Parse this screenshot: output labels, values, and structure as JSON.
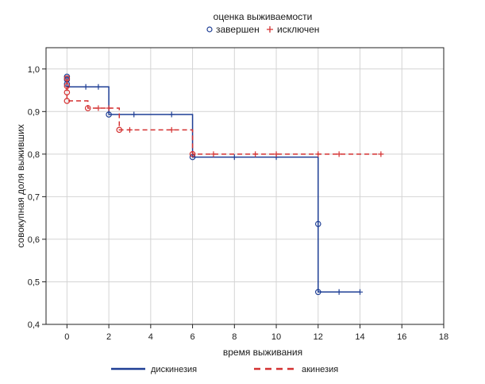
{
  "chart_data": {
    "type": "line",
    "title": "оценка выживаемости",
    "xlabel": "время выживания",
    "ylabel": "совокупная доля выживших",
    "xlim": [
      -1,
      18
    ],
    "ylim": [
      0.4,
      1.05
    ],
    "xticks": [
      "0",
      "2",
      "4",
      "6",
      "8",
      "10",
      "12",
      "14",
      "16",
      "18"
    ],
    "yticks": [
      "0,4",
      "0,5",
      "0,6",
      "0,7",
      "0,8",
      "0,9",
      "1,0"
    ],
    "grid": true,
    "marker_legend": [
      {
        "label": "завершен",
        "symbol": "o",
        "color": "#1f3f95"
      },
      {
        "label": "исключен",
        "symbol": "+",
        "color": "#d43131"
      }
    ],
    "series": [
      {
        "name": "дискинезия",
        "color": "#1f3f95",
        "dash": "solid",
        "steps": [
          [
            0,
            0.982
          ],
          [
            0,
            0.958
          ],
          [
            2,
            0.893
          ],
          [
            6,
            0.793
          ],
          [
            12,
            0.476
          ],
          [
            14,
            0.476
          ]
        ],
        "events": [
          [
            0,
            0.982
          ],
          [
            0,
            0.975
          ],
          [
            0,
            0.965
          ],
          [
            2,
            0.893
          ],
          [
            6,
            0.793
          ],
          [
            12,
            0.636
          ],
          [
            12,
            0.476
          ]
        ],
        "censored": [
          [
            0.9,
            0.958
          ],
          [
            1.5,
            0.958
          ],
          [
            3.2,
            0.893
          ],
          [
            5,
            0.893
          ],
          [
            8,
            0.793
          ],
          [
            10,
            0.793
          ],
          [
            13,
            0.476
          ],
          [
            14,
            0.476
          ]
        ]
      },
      {
        "name": "акинезия",
        "color": "#d43131",
        "dash": "dashed",
        "steps": [
          [
            0,
            0.978
          ],
          [
            0,
            0.925
          ],
          [
            1,
            0.908
          ],
          [
            2.5,
            0.857
          ],
          [
            6,
            0.8
          ],
          [
            15,
            0.8
          ]
        ],
        "events": [
          [
            0,
            0.978
          ],
          [
            0,
            0.96
          ],
          [
            0,
            0.945
          ],
          [
            0,
            0.925
          ],
          [
            1,
            0.908
          ],
          [
            2.5,
            0.857
          ],
          [
            6,
            0.8
          ]
        ],
        "censored": [
          [
            1.5,
            0.908
          ],
          [
            2,
            0.908
          ],
          [
            3,
            0.857
          ],
          [
            5,
            0.857
          ],
          [
            7,
            0.8
          ],
          [
            9,
            0.8
          ],
          [
            10,
            0.8
          ],
          [
            12,
            0.8
          ],
          [
            13,
            0.8
          ],
          [
            15,
            0.8
          ]
        ]
      }
    ]
  }
}
